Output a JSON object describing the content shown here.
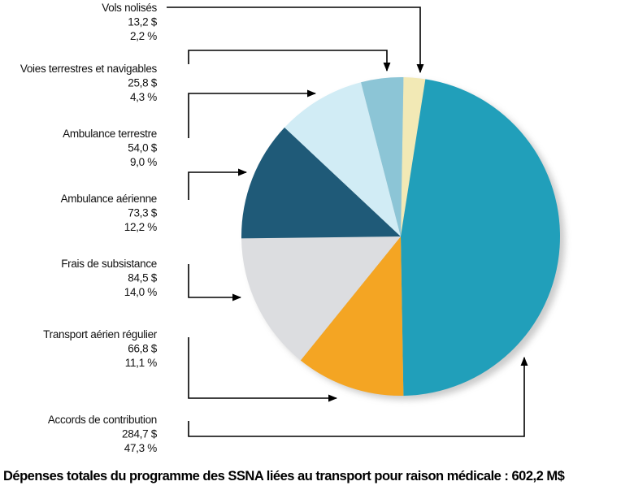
{
  "chart_data": {
    "type": "pie",
    "title": "Dépenses totales du programme des SSNA liées au transport pour raison médicale : 602,2 M$",
    "unit": "M$",
    "total": 602.2,
    "slices": [
      {
        "name": "Vols nolisés",
        "value": 13.2,
        "value_label": "13,2 $",
        "percent": 2.2,
        "percent_label": "2,2 %",
        "color": "#f2e9b5"
      },
      {
        "name": "Accords de contribution",
        "value": 284.7,
        "value_label": "284,7 $",
        "percent": 47.3,
        "percent_label": "47,3 %",
        "color": "#219fba"
      },
      {
        "name": "Transport aérien régulier",
        "value": 66.8,
        "value_label": "66,8 $",
        "percent": 11.1,
        "percent_label": "11,1 %",
        "color": "#f4a523"
      },
      {
        "name": "Frais de subsistance",
        "value": 84.5,
        "value_label": "84,5 $",
        "percent": 14.0,
        "percent_label": "14,0 %",
        "color": "#dcdde0"
      },
      {
        "name": "Ambulance aérienne",
        "value": 73.3,
        "value_label": "73,3 $",
        "percent": 12.2,
        "percent_label": "12,2 %",
        "color": "#1f5a78"
      },
      {
        "name": "Ambulance terrestre",
        "value": 54.0,
        "value_label": "54,0 $",
        "percent": 9.0,
        "percent_label": "9,0 %",
        "color": "#d1ecf5"
      },
      {
        "name": "Voies terrestres et navigables",
        "value": 25.8,
        "value_label": "25,8 $",
        "percent": 4.3,
        "percent_label": "4,3 %",
        "color": "#8cc5d6"
      }
    ]
  }
}
